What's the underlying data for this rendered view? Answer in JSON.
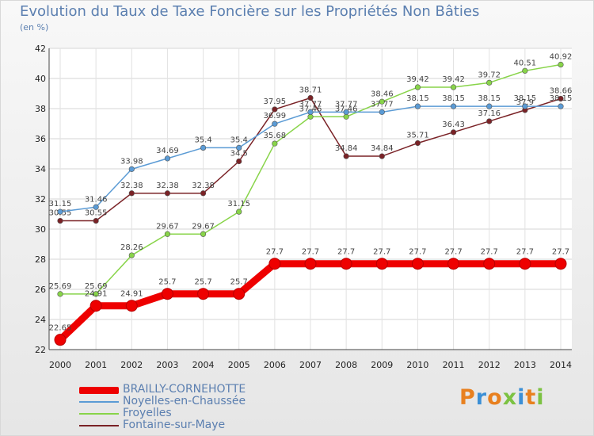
{
  "chart_data": {
    "type": "line",
    "title": "Evolution du Taux de Taxe Foncière sur les Propriétés Non Bâties",
    "ylabel": "(en %)",
    "xlabel": "",
    "ylim": [
      22,
      42
    ],
    "yticks": [
      22,
      24,
      26,
      28,
      30,
      32,
      34,
      36,
      38,
      40,
      42
    ],
    "grid": true,
    "legend_position": "bottom-left",
    "x": [
      "2000",
      "2001",
      "2002",
      "2003",
      "2004",
      "2005",
      "2006",
      "2007",
      "2008",
      "2009",
      "2010",
      "2011",
      "2012",
      "2013",
      "2014"
    ],
    "series": [
      {
        "name": "BRAILLY-CORNEHOTTE",
        "color": "#ee0000",
        "values": [
          22.65,
          24.91,
          24.91,
          25.7,
          25.7,
          25.7,
          27.7,
          27.7,
          27.7,
          27.7,
          27.7,
          27.7,
          27.7,
          27.7,
          27.7
        ],
        "labels": [
          "22.65",
          "24.91",
          "24.91",
          "25.7",
          "25.7",
          "25.7",
          "27.7",
          "27.7",
          "27.7",
          "27.7",
          "27.7",
          "27.7",
          "27.7",
          "27.7",
          "27.7"
        ]
      },
      {
        "name": "Noyelles-en-Chaussée",
        "color": "#5b9bd5",
        "values": [
          31.15,
          31.46,
          33.98,
          34.69,
          35.4,
          35.4,
          36.99,
          37.77,
          37.77,
          37.77,
          38.15,
          38.15,
          38.15,
          38.15,
          38.15
        ],
        "labels": [
          "31.15",
          "31.46",
          "33.98",
          "34.69",
          "35.4",
          "35.4",
          "36.99",
          "37.77",
          "37.77",
          "37.77",
          "38.15",
          "38.15",
          "38.15",
          "38.15",
          "38.15"
        ]
      },
      {
        "name": "Froyelles",
        "color": "#88d449",
        "values": [
          25.69,
          25.69,
          28.26,
          29.67,
          29.67,
          31.15,
          35.68,
          37.46,
          37.46,
          38.46,
          39.42,
          39.42,
          39.72,
          40.51,
          40.92
        ],
        "labels": [
          "25.69",
          "25.69",
          "28.26",
          "29.67",
          "29.67",
          "31.15",
          "35.68",
          "37.46",
          "37.46",
          "38.46",
          "39.42",
          "39.42",
          "39.72",
          "40.51",
          "40.92"
        ]
      },
      {
        "name": "Fontaine-sur-Maye",
        "color": "#7a2226",
        "values": [
          30.55,
          30.55,
          32.38,
          32.38,
          32.38,
          34.5,
          37.95,
          38.71,
          34.84,
          34.84,
          35.71,
          36.43,
          37.16,
          37.9,
          38.66
        ],
        "labels": [
          "30.55",
          "30.55",
          "32.38",
          "32.38",
          "32.38",
          "34.5",
          "37.95",
          "38.71",
          "34.84",
          "34.84",
          "35.71",
          "36.43",
          "37.16",
          "37.9",
          "38.66"
        ]
      }
    ]
  },
  "legend": {
    "items": [
      {
        "label": "BRAILLY-CORNEHOTTE",
        "color": "#ee0000"
      },
      {
        "label": "Noyelles-en-Chaussée",
        "color": "#5b9bd5"
      },
      {
        "label": "Froyelles",
        "color": "#88d449"
      },
      {
        "label": "Fontaine-sur-Maye",
        "color": "#7a2226"
      }
    ]
  },
  "brand": {
    "letters": [
      "P",
      "r",
      "o",
      "x",
      "i",
      "t",
      "i"
    ],
    "colors": [
      "#e8801f",
      "#3b8fd6",
      "#e8801f",
      "#7cc242",
      "#3b8fd6",
      "#e8801f",
      "#7cc242"
    ]
  }
}
